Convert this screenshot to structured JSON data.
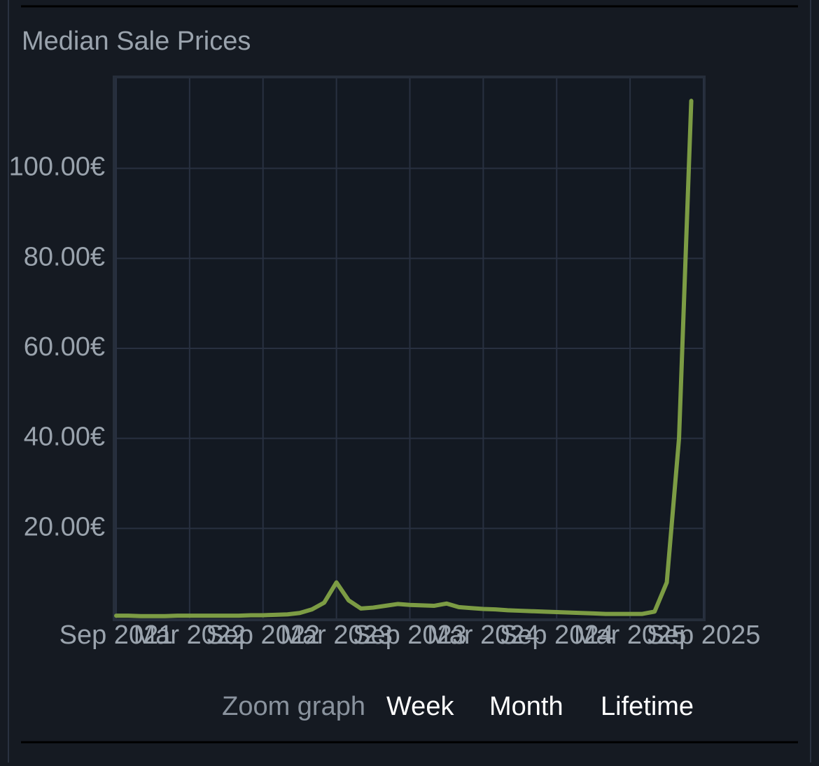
{
  "chart_data": {
    "type": "line",
    "title": "Median Sale Prices",
    "x": [
      "Sep 2021",
      "Oct 2021",
      "Nov 2021",
      "Dec 2021",
      "Jan 2022",
      "Feb 2022",
      "Mar 2022",
      "Apr 2022",
      "May 2022",
      "Jun 2022",
      "Jul 2022",
      "Aug 2022",
      "Sep 2022",
      "Oct 2022",
      "Nov 2022",
      "Dec 2022",
      "Jan 2023",
      "Feb 2023",
      "Mar 2023",
      "Apr 2023",
      "May 2023",
      "Jun 2023",
      "Jul 2023",
      "Aug 2023",
      "Sep 2023",
      "Oct 2023",
      "Nov 2023",
      "Dec 2023",
      "Jan 2024",
      "Feb 2024",
      "Mar 2024",
      "Apr 2024",
      "May 2024",
      "Jun 2024",
      "Jul 2024",
      "Aug 2024",
      "Sep 2024",
      "Oct 2024",
      "Nov 2024",
      "Dec 2024",
      "Jan 2025",
      "Feb 2025",
      "Mar 2025",
      "Apr 2025",
      "May 2025",
      "Jun 2025",
      "Jul 2025",
      "Aug 2025"
    ],
    "series": [
      {
        "color": "#7c9c44",
        "values": [
          0.6,
          0.6,
          0.5,
          0.5,
          0.5,
          0.6,
          0.6,
          0.6,
          0.6,
          0.6,
          0.6,
          0.7,
          0.7,
          0.8,
          0.9,
          1.2,
          2,
          3.5,
          8,
          4,
          2.2,
          2.4,
          2.8,
          3.2,
          3,
          2.9,
          2.8,
          3.3,
          2.5,
          2.3,
          2.1,
          2,
          1.8,
          1.7,
          1.6,
          1.5,
          1.4,
          1.3,
          1.2,
          1.1,
          1,
          1,
          1,
          1,
          1.5,
          8,
          40,
          115
        ]
      }
    ],
    "xlim": [
      "Sep 2021",
      "Sep 2025"
    ],
    "xticks": [
      "Sep 2021",
      "Mar 2022",
      "Sep 2022",
      "Mar 2023",
      "Sep 2023",
      "Mar 2024",
      "Sep 2024",
      "Mar 2025",
      "Sep 2025"
    ],
    "ylim": [
      0,
      120
    ],
    "yticks": [
      {
        "value": 20,
        "label": "20.00€"
      },
      {
        "value": 40,
        "label": "40.00€"
      },
      {
        "value": 60,
        "label": "60.00€"
      },
      {
        "value": 80,
        "label": "80.00€"
      },
      {
        "value": 100,
        "label": "100.00€"
      }
    ],
    "grid": true
  },
  "controls": {
    "label": "Zoom graph",
    "options": [
      "Week",
      "Month",
      "Lifetime"
    ]
  }
}
